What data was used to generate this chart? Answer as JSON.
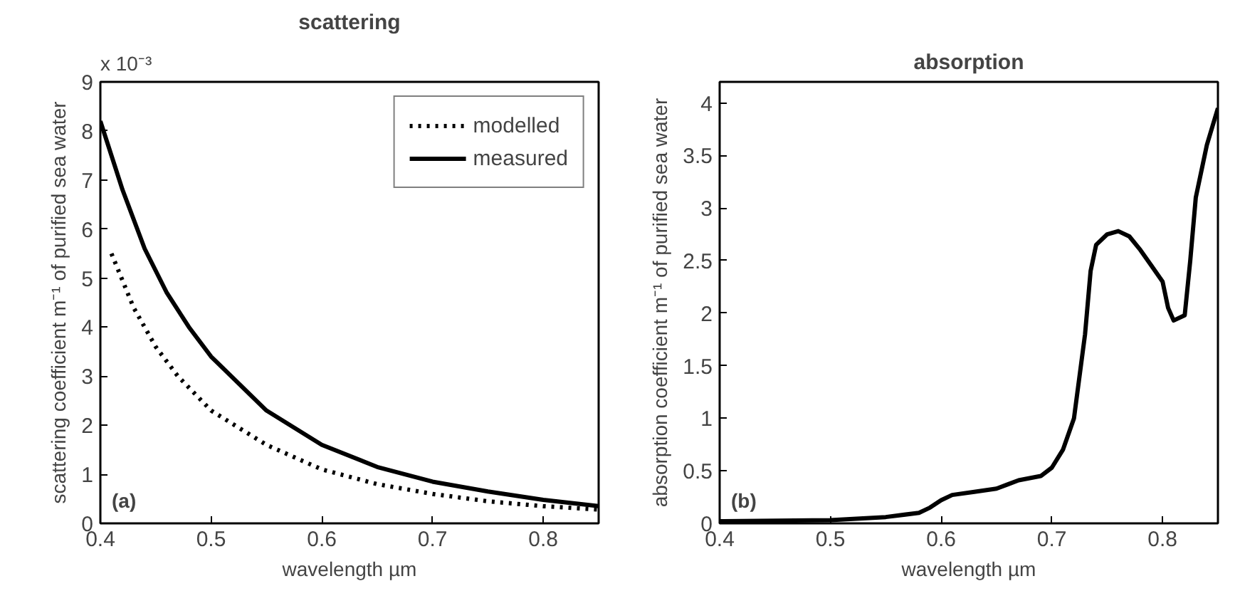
{
  "chart_data": [
    {
      "type": "line",
      "title": "scattering",
      "xlabel": "wavelength µm",
      "ylabel": "scattering coefficient m⁻¹ of purified sea water",
      "annotations": [
        "(a)",
        "x 10⁻³"
      ],
      "xlim": [
        0.4,
        0.85
      ],
      "ylim": [
        0,
        9
      ],
      "xticks": [
        0.4,
        0.5,
        0.6,
        0.7,
        0.8
      ],
      "yticks": [
        0,
        1,
        2,
        3,
        4,
        5,
        6,
        7,
        8,
        9
      ],
      "grid": false,
      "legend": "top right",
      "series": [
        {
          "name": "modelled",
          "color": "#000000",
          "line_style": "dotted",
          "x": [
            0.41,
            0.43,
            0.45,
            0.47,
            0.5,
            0.55,
            0.6,
            0.65,
            0.7,
            0.75,
            0.8,
            0.85
          ],
          "values": [
            5.5,
            4.4,
            3.6,
            3.0,
            2.3,
            1.6,
            1.1,
            0.8,
            0.6,
            0.45,
            0.35,
            0.28
          ]
        },
        {
          "name": "measured",
          "color": "#000000",
          "line_style": "solid",
          "x": [
            0.4,
            0.42,
            0.44,
            0.46,
            0.48,
            0.5,
            0.55,
            0.6,
            0.65,
            0.7,
            0.75,
            0.8,
            0.85
          ],
          "values": [
            8.2,
            6.8,
            5.6,
            4.7,
            4.0,
            3.4,
            2.3,
            1.6,
            1.15,
            0.85,
            0.65,
            0.48,
            0.35
          ]
        }
      ]
    },
    {
      "type": "line",
      "title": "absorption",
      "xlabel": "wavelength µm",
      "ylabel": "absorption coefficient m⁻¹ of purified sea water",
      "annotations": [
        "(b)"
      ],
      "xlim": [
        0.4,
        0.85
      ],
      "ylim": [
        0,
        4.2
      ],
      "xticks": [
        0.4,
        0.5,
        0.6,
        0.7,
        0.8
      ],
      "yticks": [
        0,
        0.5,
        1,
        1.5,
        2,
        2.5,
        3,
        3.5,
        4
      ],
      "grid": false,
      "series": [
        {
          "color": "#000000",
          "line_style": "solid",
          "x": [
            0.4,
            0.5,
            0.55,
            0.58,
            0.59,
            0.6,
            0.61,
            0.63,
            0.65,
            0.66,
            0.67,
            0.69,
            0.7,
            0.71,
            0.72,
            0.73,
            0.735,
            0.74,
            0.75,
            0.76,
            0.77,
            0.78,
            0.79,
            0.8,
            0.805,
            0.81,
            0.82,
            0.825,
            0.83,
            0.84,
            0.85
          ],
          "values": [
            0.02,
            0.03,
            0.06,
            0.1,
            0.15,
            0.22,
            0.27,
            0.3,
            0.33,
            0.37,
            0.41,
            0.45,
            0.53,
            0.7,
            1.0,
            1.8,
            2.4,
            2.65,
            2.75,
            2.78,
            2.73,
            2.6,
            2.45,
            2.3,
            2.05,
            1.93,
            1.98,
            2.5,
            3.1,
            3.6,
            3.95
          ]
        }
      ]
    }
  ]
}
